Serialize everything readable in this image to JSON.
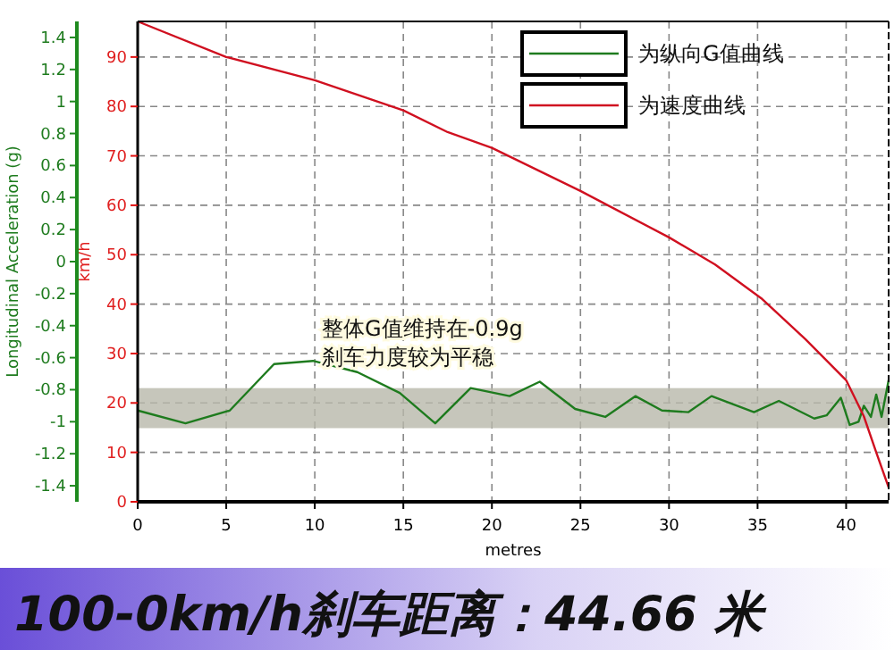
{
  "chart_data": {
    "type": "line",
    "title": "100-0km/h刹车距离：44.66 米",
    "xlabel": "metres",
    "ylabel": "km/h",
    "y2label": "Longitudinal Acceleration (g)",
    "annotations": [
      "整体G值维持在-0.9g",
      "刹车力度较为平稳"
    ],
    "xlim": [
      0,
      42.4
    ],
    "xticks": [
      0,
      5,
      10,
      15,
      20,
      25,
      30,
      35,
      40
    ],
    "ylim": [
      0,
      97.2
    ],
    "yticks": [
      0,
      10,
      20,
      30,
      40,
      50,
      60,
      70,
      80,
      90
    ],
    "y2lim": [
      -1.5,
      1.5
    ],
    "y2ticks": [
      -1.4,
      -1.2,
      -1,
      -0.8,
      -0.6,
      -0.4,
      -0.2,
      0,
      0.2,
      0.4,
      0.6,
      0.8,
      1,
      1.2,
      1.4
    ],
    "grid": true,
    "legend": "top right",
    "marker": "none",
    "line_style": "solid",
    "bands": [
      {
        "axis": "y2",
        "from": -1.04,
        "to": -0.79,
        "color": "#b8b8aa"
      }
    ],
    "series": [
      {
        "name": "为纵向G值曲线",
        "color": "#1e7b1e",
        "axis": "y2",
        "x": [
          0,
          2.7,
          5.2,
          7.7,
          9.9,
          12.4,
          14.8,
          16.8,
          18.8,
          21,
          22.7,
          24.7,
          26.4,
          28.1,
          29.6,
          31.1,
          32.4,
          34.8,
          36.2,
          38.2,
          38.9,
          39.7,
          40.2,
          40.7,
          41,
          41.4,
          41.7,
          42,
          42.4
        ],
        "values": [
          -0.93,
          -1.01,
          -0.93,
          -0.64,
          -0.62,
          -0.69,
          -0.82,
          -1.01,
          -0.79,
          -0.84,
          -0.75,
          -0.92,
          -0.97,
          -0.84,
          -0.93,
          -0.94,
          -0.84,
          -0.94,
          -0.87,
          -0.98,
          -0.96,
          -0.85,
          -1.02,
          -1,
          -0.9,
          -0.97,
          -0.83,
          -0.97,
          -0.74
        ]
      },
      {
        "name": "为速度曲线",
        "color": "#d01020",
        "axis": "y",
        "x": [
          0,
          5,
          10,
          15,
          17.5,
          20,
          25,
          30,
          32.6,
          35.2,
          37.7,
          40,
          41,
          41.7,
          42.4
        ],
        "values": [
          97.2,
          90,
          85.3,
          79.2,
          74.8,
          71.6,
          62.9,
          53.5,
          48,
          41.2,
          32.9,
          24.6,
          17.3,
          10,
          2.9
        ]
      }
    ]
  }
}
